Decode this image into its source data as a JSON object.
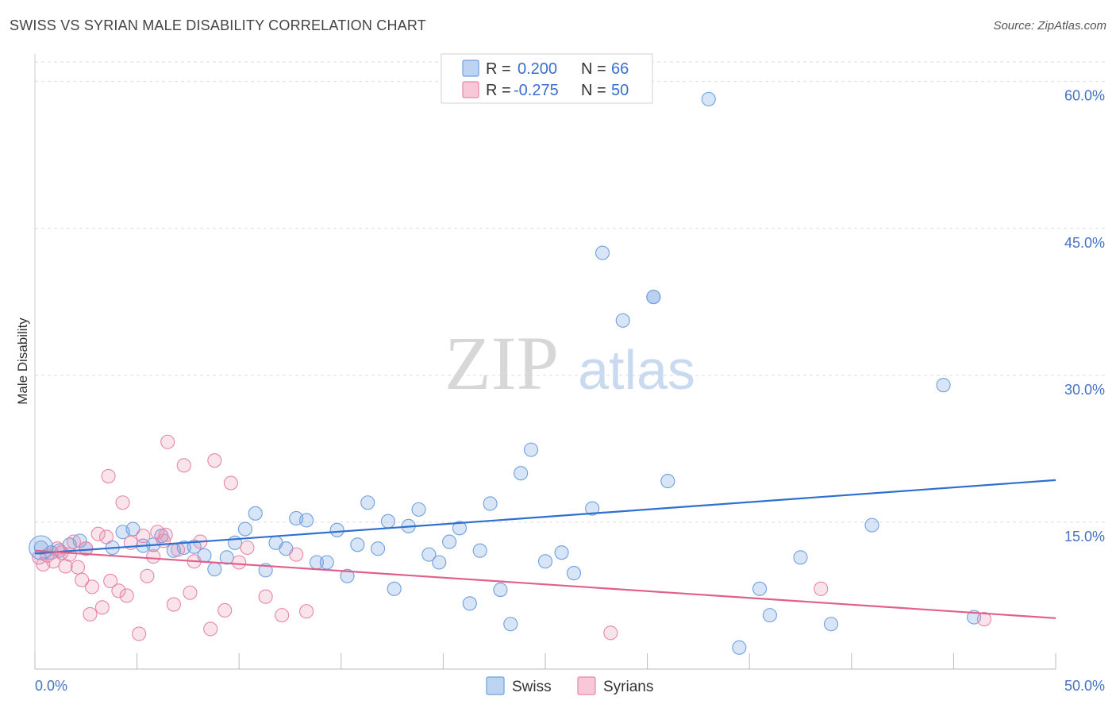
{
  "header": {
    "title": "SWISS VS SYRIAN MALE DISABILITY CORRELATION CHART",
    "source": "Source: ZipAtlas.com"
  },
  "chart_data": {
    "type": "scatter",
    "title": "SWISS VS SYRIAN MALE DISABILITY CORRELATION CHART",
    "xlabel": "",
    "ylabel": "Male Disability",
    "xlim": [
      0,
      50
    ],
    "ylim": [
      0,
      62
    ],
    "x_tick_labels": [
      "0.0%",
      "50.0%"
    ],
    "y_ticks": [
      15,
      30,
      45,
      60
    ],
    "y_tick_labels": [
      "15.0%",
      "30.0%",
      "45.0%",
      "60.0%"
    ],
    "grid": true,
    "legend_position": "top-center",
    "watermark": {
      "zip": "ZIP",
      "atlas": "atlas"
    },
    "legend": [
      {
        "r_label": "R =",
        "r_value": "0.200",
        "n_label": "N =",
        "n_value": "66",
        "color": "#6fa0e0"
      },
      {
        "r_label": "R =",
        "r_value": "-0.275",
        "n_label": "N =",
        "n_value": "50",
        "color": "#e886a8"
      }
    ],
    "series": [
      {
        "name": "Swiss",
        "color": "#6fa0e0",
        "line_color": "#2f6fcf",
        "trend": [
          [
            0,
            11.8
          ],
          [
            50,
            19.3
          ]
        ],
        "points": [
          [
            0.3,
            12.4
          ],
          [
            0.8,
            11.9
          ],
          [
            1.2,
            12.1
          ],
          [
            1.7,
            12.7
          ],
          [
            2.2,
            13.1
          ],
          [
            2.5,
            12.3
          ],
          [
            3.8,
            12.4
          ],
          [
            4.3,
            14.0
          ],
          [
            4.8,
            14.3
          ],
          [
            5.3,
            12.6
          ],
          [
            5.8,
            12.7
          ],
          [
            6.2,
            13.6
          ],
          [
            6.8,
            12.1
          ],
          [
            7.3,
            12.4
          ],
          [
            7.8,
            12.5
          ],
          [
            8.3,
            11.6
          ],
          [
            8.8,
            10.2
          ],
          [
            9.4,
            11.4
          ],
          [
            9.8,
            12.9
          ],
          [
            10.3,
            14.3
          ],
          [
            10.8,
            15.9
          ],
          [
            11.3,
            10.1
          ],
          [
            11.8,
            12.9
          ],
          [
            12.3,
            12.3
          ],
          [
            12.8,
            15.4
          ],
          [
            13.3,
            15.2
          ],
          [
            13.8,
            10.9
          ],
          [
            14.3,
            10.9
          ],
          [
            14.8,
            14.2
          ],
          [
            15.3,
            9.5
          ],
          [
            15.8,
            12.7
          ],
          [
            16.3,
            17.0
          ],
          [
            16.8,
            12.3
          ],
          [
            17.3,
            15.1
          ],
          [
            17.6,
            8.2
          ],
          [
            18.3,
            14.6
          ],
          [
            18.8,
            16.3
          ],
          [
            19.3,
            11.7
          ],
          [
            19.8,
            10.9
          ],
          [
            20.3,
            13.0
          ],
          [
            20.8,
            14.4
          ],
          [
            21.3,
            6.7
          ],
          [
            21.8,
            12.1
          ],
          [
            22.3,
            16.9
          ],
          [
            22.8,
            8.1
          ],
          [
            23.3,
            4.6
          ],
          [
            23.8,
            20.0
          ],
          [
            24.3,
            22.4
          ],
          [
            25.0,
            11.0
          ],
          [
            25.8,
            11.9
          ],
          [
            26.4,
            9.8
          ],
          [
            27.3,
            16.4
          ],
          [
            27.8,
            42.5
          ],
          [
            28.8,
            35.6
          ],
          [
            30.3,
            38.0
          ],
          [
            31.0,
            19.2
          ],
          [
            33.0,
            58.2
          ],
          [
            34.5,
            2.2
          ],
          [
            35.5,
            8.2
          ],
          [
            36.0,
            5.5
          ],
          [
            37.5,
            11.4
          ],
          [
            39.0,
            4.6
          ],
          [
            41.0,
            14.7
          ],
          [
            44.5,
            29.0
          ],
          [
            46.0,
            5.3
          ],
          [
            30.3,
            38.0
          ]
        ]
      },
      {
        "name": "Syrians",
        "color": "#e886a8",
        "line_color": "#e0608c",
        "trend": [
          [
            0,
            12.1
          ],
          [
            50,
            5.2
          ]
        ],
        "points": [
          [
            0.2,
            11.4
          ],
          [
            0.4,
            10.7
          ],
          [
            0.6,
            11.6
          ],
          [
            0.9,
            11.0
          ],
          [
            1.1,
            12.3
          ],
          [
            1.3,
            11.9
          ],
          [
            1.5,
            10.5
          ],
          [
            1.7,
            11.7
          ],
          [
            1.9,
            13.0
          ],
          [
            2.1,
            10.4
          ],
          [
            2.3,
            9.1
          ],
          [
            2.5,
            12.3
          ],
          [
            2.7,
            5.6
          ],
          [
            2.8,
            8.4
          ],
          [
            3.1,
            13.8
          ],
          [
            3.3,
            6.3
          ],
          [
            3.5,
            13.5
          ],
          [
            3.7,
            9.0
          ],
          [
            4.1,
            8.0
          ],
          [
            4.3,
            17.0
          ],
          [
            4.5,
            7.5
          ],
          [
            4.7,
            12.9
          ],
          [
            5.1,
            3.6
          ],
          [
            5.3,
            13.6
          ],
          [
            5.5,
            9.5
          ],
          [
            5.8,
            11.5
          ],
          [
            6.0,
            14.0
          ],
          [
            6.3,
            13.1
          ],
          [
            6.5,
            23.2
          ],
          [
            6.8,
            6.6
          ],
          [
            7.0,
            12.2
          ],
          [
            7.3,
            20.8
          ],
          [
            7.6,
            7.8
          ],
          [
            7.8,
            11.0
          ],
          [
            8.1,
            13.0
          ],
          [
            8.6,
            4.1
          ],
          [
            8.8,
            21.3
          ],
          [
            9.3,
            6.0
          ],
          [
            9.6,
            19.0
          ],
          [
            10.0,
            10.9
          ],
          [
            10.4,
            12.4
          ],
          [
            11.3,
            7.4
          ],
          [
            12.1,
            5.5
          ],
          [
            12.8,
            11.7
          ],
          [
            13.3,
            5.9
          ],
          [
            6.4,
            13.7
          ],
          [
            28.2,
            3.7
          ],
          [
            38.5,
            8.2
          ],
          [
            46.5,
            5.1
          ],
          [
            3.6,
            19.7
          ]
        ]
      }
    ]
  }
}
